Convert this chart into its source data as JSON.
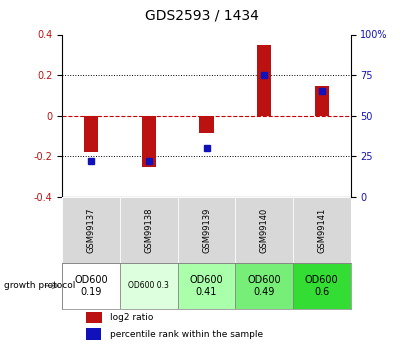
{
  "title": "GDS2593 / 1434",
  "samples": [
    "GSM99137",
    "GSM99138",
    "GSM99139",
    "GSM99140",
    "GSM99141"
  ],
  "log2_ratio": [
    -0.18,
    -0.255,
    -0.085,
    0.35,
    0.145
  ],
  "percentile_rank": [
    22,
    22,
    30,
    75,
    65
  ],
  "ylim_left": [
    -0.4,
    0.4
  ],
  "ylim_right": [
    0,
    100
  ],
  "yticks_left": [
    -0.4,
    -0.2,
    0.0,
    0.2,
    0.4
  ],
  "yticks_right": [
    0,
    25,
    50,
    75,
    100
  ],
  "bar_color_red": "#bb1111",
  "bar_color_blue": "#1111bb",
  "zero_line_color": "#cc0000",
  "bg_color": "#d8d8d8",
  "protocol_labels": [
    "OD600\n0.19",
    "OD600 0.3",
    "OD600\n0.41",
    "OD600\n0.49",
    "OD600\n0.6"
  ],
  "protocol_colors": [
    "#ffffff",
    "#ddffdd",
    "#aaffaa",
    "#77ee77",
    "#33dd33"
  ],
  "protocol_small": [
    false,
    true,
    false,
    false,
    false
  ],
  "legend_red": "log2 ratio",
  "legend_blue": "percentile rank within the sample",
  "growth_label": "growth protocol"
}
